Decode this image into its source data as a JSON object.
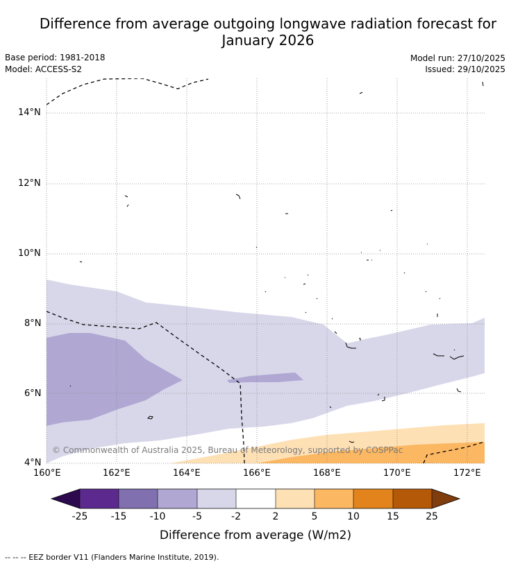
{
  "header": {
    "title_line1": "Difference from average outgoing longwave radiation forecast for",
    "title_line2": "January 2026",
    "base_period": "Base period: 1981-2018",
    "model": "Model: ACCESS-S2",
    "model_run": "Model run: 27/10/2025",
    "issued": "Issued: 29/10/2025"
  },
  "map": {
    "lat_labels": [
      "14°N",
      "12°N",
      "10°N",
      "8°N",
      "6°N",
      "4°N"
    ],
    "lon_labels": [
      "160°E",
      "162°E",
      "164°E",
      "166°E",
      "168°E",
      "170°E",
      "172°E"
    ],
    "copyright": "© Commonwealth of Australia 2025, Bureau of Meteorology, supported by COSPPac"
  },
  "colorbar": {
    "title": "Difference from average (W/m2)",
    "ticks": [
      "-25",
      "-15",
      "-10",
      "-5",
      "-2",
      "2",
      "5",
      "10",
      "15",
      "25"
    ],
    "colors": {
      "under": "#2d0a4e",
      "bin_m25_m15": "#5c2a8e",
      "bin_m15_m10": "#8170b0",
      "bin_m10_m5": "#b0a8d2",
      "bin_m5_m2": "#d8d7ea",
      "bin_m2_2": "#ffffff",
      "bin_2_5": "#fee0b5",
      "bin_5_10": "#fbb762",
      "bin_10_15": "#e2841b",
      "bin_15_25": "#b35908",
      "over": "#7f3c0c"
    }
  },
  "footnote": "--  --  -- EEZ border V11 (Flanders Marine Institute, 2019)."
}
